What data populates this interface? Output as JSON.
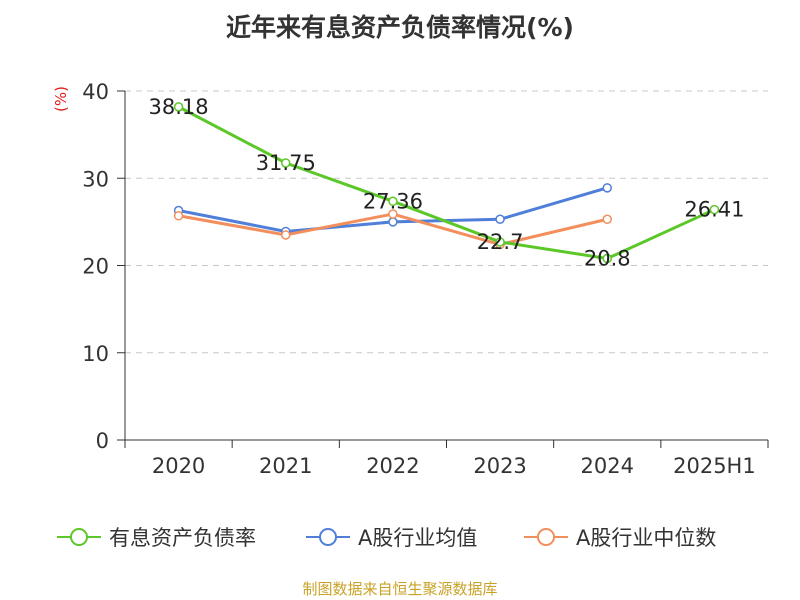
{
  "title": "近年来有息资产负债率情况(%)",
  "unit_label": "(%)",
  "source": "制图数据来自恒生聚源数据库",
  "chart_data": {
    "type": "line",
    "title": "近年来有息资产负债率情况(%)",
    "ylabel": "(%)",
    "xlabel": "",
    "categories": [
      "2020",
      "2021",
      "2022",
      "2023",
      "2024",
      "2025H1"
    ],
    "y_ticks": [
      "0",
      "10",
      "20",
      "30",
      "40"
    ],
    "ylim": [
      0,
      40
    ],
    "grid": true,
    "legend_position": "bottom",
    "series": [
      {
        "name": "有息资产负债率",
        "color": "#5cc729",
        "values": [
          38.18,
          31.75,
          27.36,
          22.7,
          20.8,
          26.41
        ],
        "labels": [
          "38.18",
          "31.75",
          "27.36",
          "22.7",
          "20.8",
          "26.41"
        ]
      },
      {
        "name": "A股行业均值",
        "color": "#4f7fd8",
        "values": [
          26.3,
          23.9,
          25.0,
          25.3,
          28.9,
          null
        ]
      },
      {
        "name": "A股行业中位数",
        "color": "#f28f5c",
        "values": [
          25.7,
          23.5,
          25.9,
          22.4,
          25.3,
          null
        ]
      }
    ]
  }
}
